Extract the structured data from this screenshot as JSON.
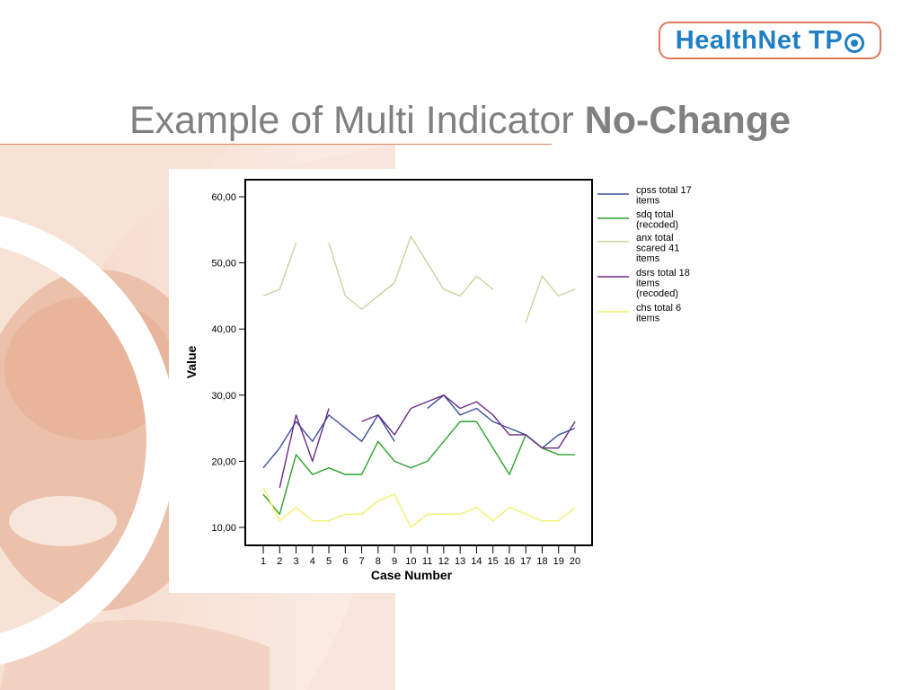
{
  "slide": {
    "title_regular": "Example of Multi Indicator",
    "title_bold": "No-Change",
    "logo_text": "HealthNet TP",
    "logo_mark": "logo-circle-icon"
  },
  "chart_data": {
    "type": "line",
    "xlabel": "Case Number",
    "ylabel": "Value",
    "x": [
      1,
      2,
      3,
      4,
      5,
      6,
      7,
      8,
      9,
      10,
      11,
      12,
      13,
      14,
      15,
      16,
      17,
      18,
      19,
      20
    ],
    "yticks": [
      "10,00",
      "20,00",
      "30,00",
      "40,00",
      "50,00",
      "60,00"
    ],
    "ylim": [
      8,
      63
    ],
    "grid": false,
    "legend_position": "right",
    "series": [
      {
        "name": "cpss total 17 items",
        "color": "#3a4fa0",
        "values": [
          19,
          22,
          26,
          23,
          27,
          25,
          23,
          27,
          23,
          null,
          28,
          30,
          27,
          28,
          26,
          25,
          24,
          22,
          24,
          25
        ]
      },
      {
        "name": "sdq total (recoded)",
        "color": "#2ca02c",
        "values": [
          15,
          12,
          21,
          18,
          19,
          18,
          18,
          23,
          20,
          19,
          20,
          23,
          26,
          26,
          22,
          18,
          24,
          22,
          21,
          21
        ]
      },
      {
        "name": "anx total scared 41 items",
        "color": "#c8d4a0",
        "values": [
          45,
          46,
          53,
          null,
          53,
          45,
          43,
          45,
          47,
          54,
          50,
          46,
          45,
          48,
          46,
          null,
          41,
          48,
          45,
          46
        ]
      },
      {
        "name": "dsrs total 18 items (recoded)",
        "color": "#6a2a86",
        "values": [
          null,
          16,
          27,
          20,
          28,
          null,
          26,
          27,
          24,
          28,
          29,
          30,
          28,
          29,
          27,
          24,
          24,
          22,
          22,
          26
        ]
      },
      {
        "name": "chs total 6 items",
        "color": "#f2ef6a",
        "values": [
          16,
          11,
          13,
          11,
          11,
          12,
          12,
          14,
          15,
          10,
          12,
          12,
          12,
          13,
          11,
          13,
          12,
          11,
          11,
          13
        ]
      }
    ]
  }
}
